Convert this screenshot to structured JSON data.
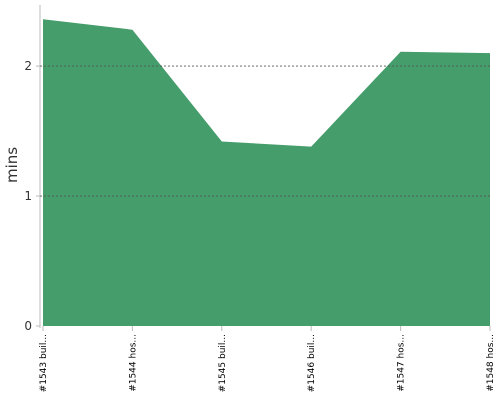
{
  "chart_data": {
    "type": "area",
    "ylabel": "mins",
    "categories": [
      "#1543 buil...",
      "#1544 hos...",
      "#1545 buil...",
      "#1546 buil...",
      "#1547 hos...",
      "#1548 hos..."
    ],
    "values": [
      2.36,
      2.28,
      1.42,
      1.38,
      2.11,
      2.1
    ],
    "color": "#449d6b",
    "ylim": [
      0,
      2.47
    ],
    "yticks": [
      0,
      1,
      2
    ],
    "grid": true
  }
}
